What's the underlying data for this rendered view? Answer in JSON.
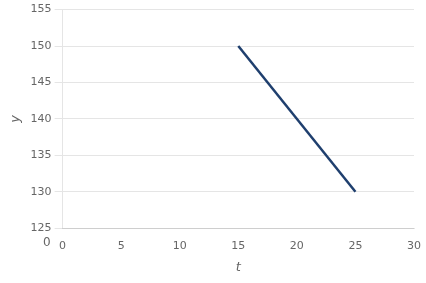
{
  "chart_data": {
    "type": "line",
    "x": [
      15,
      25
    ],
    "values": [
      150,
      130
    ],
    "color": "#1f3f6e",
    "xlabel": "t",
    "ylabel": "y",
    "xlim": [
      0,
      30
    ],
    "xticks": [
      0,
      5,
      10,
      15,
      20,
      25,
      30
    ],
    "ylim": [
      125,
      155
    ],
    "yticks": [
      125,
      130,
      135,
      140,
      145,
      150,
      155
    ],
    "grid": "y",
    "annotations": [
      {
        "text": "0",
        "y": 0
      }
    ]
  }
}
